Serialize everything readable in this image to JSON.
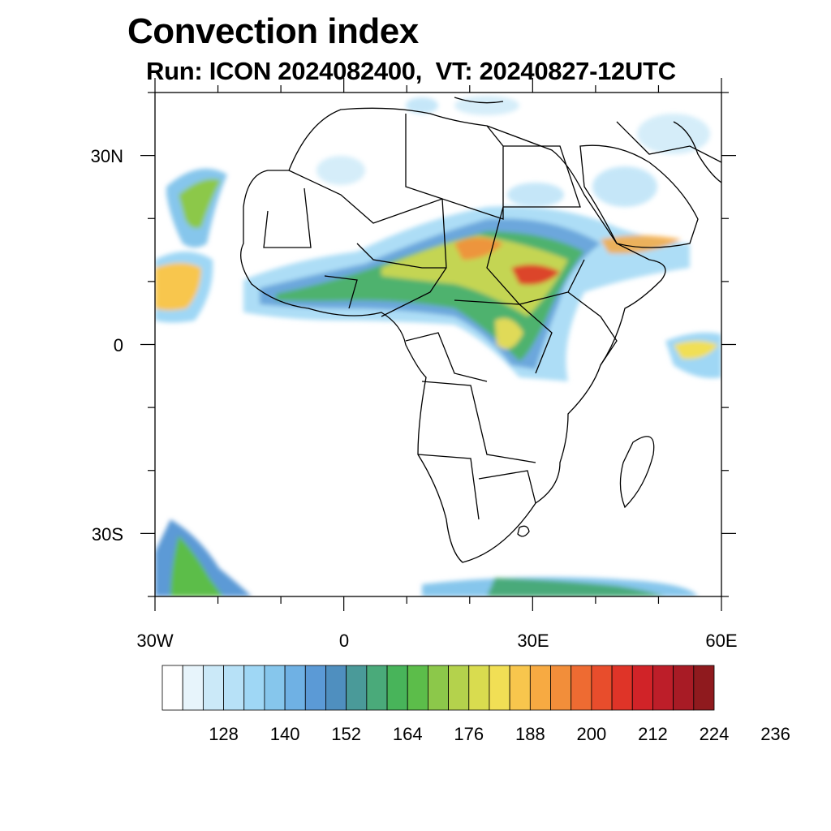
{
  "title": "Convection index",
  "subtitle": "Run: ICON 2024082400,  VT: 20240827-12UTC",
  "map": {
    "lat_labels": [
      "30N",
      "0",
      "30S"
    ],
    "lon_labels": [
      "30W",
      "0",
      "30E",
      "60E"
    ],
    "lat_label_values": [
      30,
      0,
      -30
    ],
    "lon_label_values": [
      -30,
      0,
      30,
      60
    ],
    "lon_range": [
      -30,
      60
    ],
    "lat_range": [
      -40,
      40
    ]
  },
  "colorbar": {
    "colors": [
      "#ffffff",
      "#e7f4fb",
      "#cbe9f8",
      "#b7e1f7",
      "#9fd7f5",
      "#86c6ec",
      "#6fb1e4",
      "#5b9ad6",
      "#4f8fbf",
      "#4a9a99",
      "#4aaa7a",
      "#48b45a",
      "#5cbd4a",
      "#8cc84a",
      "#b4d24c",
      "#d9dc4f",
      "#f1df55",
      "#f8c64d",
      "#f7aa42",
      "#f28e3a",
      "#ee6b32",
      "#e84d2c",
      "#df3428",
      "#d12328",
      "#bd1e29",
      "#a81b25",
      "#8f1a1e"
    ],
    "labels": [
      "128",
      "140",
      "152",
      "164",
      "176",
      "188",
      "200",
      "212",
      "224",
      "236"
    ]
  }
}
